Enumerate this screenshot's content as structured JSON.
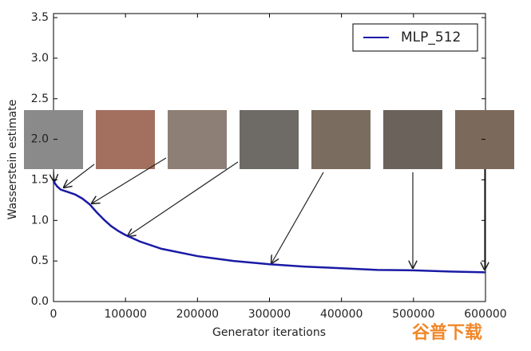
{
  "chart_data": {
    "type": "line",
    "xlabel": "Generator iterations",
    "ylabel": "Wasserstein estimate",
    "x": [
      0,
      5000,
      10000,
      20000,
      30000,
      40000,
      50000,
      60000,
      70000,
      80000,
      90000,
      100000,
      120000,
      150000,
      200000,
      250000,
      300000,
      350000,
      400000,
      450000,
      500000,
      550000,
      600000
    ],
    "series": [
      {
        "name": "MLP_512",
        "color": "#1a1aa6",
        "values": [
          1.48,
          1.42,
          1.38,
          1.35,
          1.32,
          1.27,
          1.2,
          1.1,
          1.01,
          0.93,
          0.87,
          0.82,
          0.74,
          0.65,
          0.56,
          0.5,
          0.46,
          0.43,
          0.41,
          0.39,
          0.385,
          0.37,
          0.36
        ]
      }
    ],
    "xlim": [
      0,
      600000
    ],
    "xticks": [
      0,
      100000,
      200000,
      300000,
      400000,
      500000,
      600000
    ],
    "ylim": [
      0,
      3.55
    ],
    "yticks": [
      {
        "value": 0,
        "label": "0.0"
      },
      0.5,
      {
        "value": 1,
        "label": "1.0"
      },
      1.5,
      {
        "value": 2,
        "label": "2.0"
      },
      2.5,
      {
        "value": 3,
        "label": "3.0"
      },
      3.5
    ],
    "legend": "upper right",
    "watermark": "谷普下载"
  }
}
